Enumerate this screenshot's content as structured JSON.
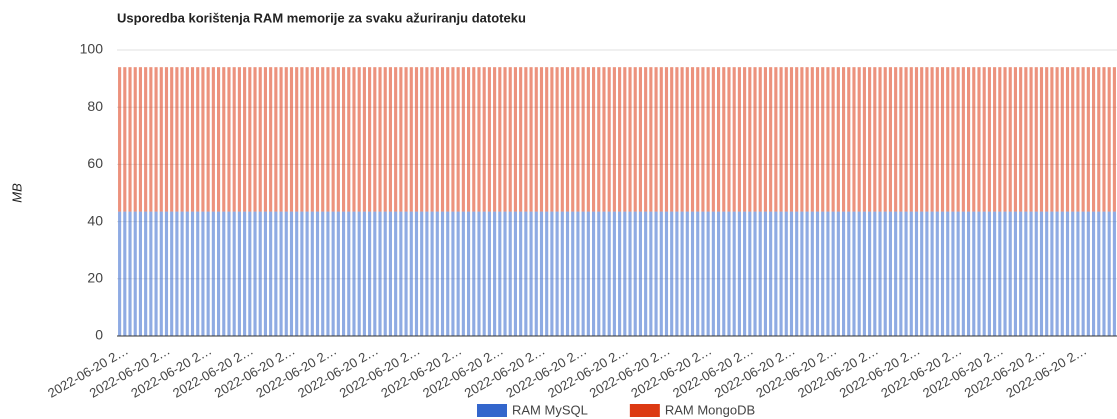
{
  "chart_data": {
    "type": "stacked_bar",
    "title": "Usporedba korištenja RAM memorije za svaku ažuriranju datoteku",
    "y_label": "MB",
    "categories": [
      "2022-06-20 2…",
      null,
      null,
      null,
      null,
      null,
      null,
      null,
      "2022-06-20 2…",
      null,
      null,
      null,
      null,
      null,
      null,
      null,
      "2022-06-20 2…",
      null,
      null,
      null,
      null,
      null,
      null,
      null,
      "2022-06-20 2…",
      null,
      null,
      null,
      null,
      null,
      null,
      null,
      "2022-06-20 2…",
      null,
      null,
      null,
      null,
      null,
      null,
      null,
      "2022-06-20 2…",
      null,
      null,
      null,
      null,
      null,
      null,
      null,
      "2022-06-20 2…",
      null,
      null,
      null,
      null,
      null,
      null,
      null,
      "2022-06-20 2…",
      null,
      null,
      null,
      null,
      null,
      null,
      null,
      "2022-06-20 2…",
      null,
      null,
      null,
      null,
      null,
      null,
      null,
      "2022-06-20 2…",
      null,
      null,
      null,
      null,
      null,
      null,
      null,
      "2022-06-20 2…",
      null,
      null,
      null,
      null,
      null,
      null,
      null,
      "2022-06-20 2…",
      null,
      null,
      null,
      null,
      null,
      null,
      null,
      "2022-06-20 2…",
      null,
      null,
      null,
      null,
      null,
      null,
      null,
      "2022-06-20 2…",
      null,
      null,
      null,
      null,
      null,
      null,
      null,
      "2022-06-20 2…",
      null,
      null,
      null,
      null,
      null,
      null,
      null,
      "2022-06-20 2…",
      null,
      null,
      null,
      null,
      null,
      null,
      null,
      "2022-06-20 2…",
      null,
      null,
      null,
      null,
      null,
      null,
      null,
      "2022-06-20 2…",
      null,
      null,
      null,
      null,
      null,
      null,
      null,
      "2022-06-20 2…",
      null,
      null,
      null,
      null,
      null,
      null,
      null,
      "2022-06-20 2…",
      null,
      null,
      null,
      null,
      null,
      null,
      null,
      "2022-06-20 2…",
      null,
      null,
      null,
      null,
      null,
      null,
      null,
      "2022-06-20 2…",
      null,
      null,
      null,
      null,
      null,
      null,
      null,
      "2022-06-20 2…",
      null,
      null,
      null,
      null,
      null,
      null,
      null,
      "2022-06-20 2…",
      null,
      null,
      null,
      null,
      null,
      null,
      null
    ],
    "series": [
      {
        "name": "RAM MySQL",
        "color": "#3366cc",
        "values": [
          43.5,
          43.5,
          43.5,
          43.5,
          43.5,
          43.5,
          43.5,
          43.5,
          43.5,
          43.5,
          43.5,
          43.5,
          43.5,
          43.5,
          43.5,
          43.5,
          43.5,
          43.5,
          43.5,
          43.5,
          43.5,
          43.5,
          43.5,
          43.5,
          43.5,
          43.5,
          43.5,
          43.5,
          43.5,
          43.5,
          43.5,
          43.5,
          43.5,
          43.5,
          43.5,
          43.5,
          43.5,
          43.5,
          43.5,
          43.5,
          43.5,
          43.5,
          43.5,
          43.5,
          43.5,
          43.5,
          43.5,
          43.5,
          43.5,
          43.5,
          43.5,
          43.5,
          43.5,
          43.5,
          43.5,
          43.5,
          43.5,
          43.5,
          43.5,
          43.5,
          43.5,
          43.5,
          43.5,
          43.5,
          43.5,
          43.5,
          43.5,
          43.5,
          43.5,
          43.5,
          43.5,
          43.5,
          43.5,
          43.5,
          43.5,
          43.5,
          43.5,
          43.5,
          43.5,
          43.5,
          43.5,
          43.5,
          43.5,
          43.5,
          43.5,
          43.5,
          43.5,
          43.5,
          43.5,
          43.5,
          43.5,
          43.5,
          43.5,
          43.5,
          43.5,
          43.5,
          43.5,
          43.5,
          43.5,
          43.5,
          43.5,
          43.5,
          43.5,
          43.5,
          43.5,
          43.5,
          43.5,
          43.5,
          43.5,
          43.5,
          43.5,
          43.5,
          43.5,
          43.5,
          43.5,
          43.5,
          43.5,
          43.5,
          43.5,
          43.5,
          43.5,
          43.5,
          43.5,
          43.5,
          43.5,
          43.5,
          43.5,
          43.5,
          43.5,
          43.5,
          43.5,
          43.5,
          43.5,
          43.5,
          43.5,
          43.5,
          43.5,
          43.5,
          43.5,
          43.5,
          43.5,
          43.5,
          43.5,
          43.5,
          43.5,
          43.5,
          43.5,
          43.5,
          43.5,
          43.5,
          43.5,
          43.5,
          43.5,
          43.5,
          43.5,
          43.5,
          43.5,
          43.5,
          43.5,
          43.5,
          43.5,
          43.5,
          43.5,
          43.5,
          43.5,
          43.5,
          43.5,
          43.5,
          43.5,
          43.5,
          43.5,
          43.5,
          43.5,
          43.5,
          43.5,
          43.5,
          43.5,
          43.5,
          43.5,
          43.5,
          43.5,
          43.5,
          43.5,
          43.5,
          43.5,
          43.5,
          43.5,
          43.5,
          43.5,
          43.5,
          43.5,
          43.5
        ]
      },
      {
        "name": "RAM MongoDB",
        "color": "#dc3912",
        "values": [
          50.5,
          50.5,
          50.5,
          50.5,
          50.5,
          50.5,
          50.5,
          50.5,
          50.5,
          50.5,
          50.5,
          50.5,
          50.5,
          50.5,
          50.5,
          50.5,
          50.5,
          50.5,
          50.5,
          50.5,
          50.5,
          50.5,
          50.5,
          50.5,
          50.5,
          50.5,
          50.5,
          50.5,
          50.5,
          50.5,
          50.5,
          50.5,
          50.5,
          50.5,
          50.5,
          50.5,
          50.5,
          50.5,
          50.5,
          50.5,
          50.5,
          50.5,
          50.5,
          50.5,
          50.5,
          50.5,
          50.5,
          50.5,
          50.5,
          50.5,
          50.5,
          50.5,
          50.5,
          50.5,
          50.5,
          50.5,
          50.5,
          50.5,
          50.5,
          50.5,
          50.5,
          50.5,
          50.5,
          50.5,
          50.5,
          50.5,
          50.5,
          50.5,
          50.5,
          50.5,
          50.5,
          50.5,
          50.5,
          50.5,
          50.5,
          50.5,
          50.5,
          50.5,
          50.5,
          50.5,
          50.5,
          50.5,
          50.5,
          50.5,
          50.5,
          50.5,
          50.5,
          50.5,
          50.5,
          50.5,
          50.5,
          50.5,
          50.5,
          50.5,
          50.5,
          50.5,
          50.5,
          50.5,
          50.5,
          50.5,
          50.5,
          50.5,
          50.5,
          50.5,
          50.5,
          50.5,
          50.5,
          50.5,
          50.5,
          50.5,
          50.5,
          50.5,
          50.5,
          50.5,
          50.5,
          50.5,
          50.5,
          50.5,
          50.5,
          50.5,
          50.5,
          50.5,
          50.5,
          50.5,
          50.5,
          50.5,
          50.5,
          50.5,
          50.5,
          50.5,
          50.5,
          50.5,
          50.5,
          50.5,
          50.5,
          50.5,
          50.5,
          50.5,
          50.5,
          50.5,
          50.5,
          50.5,
          50.5,
          50.5,
          50.5,
          50.5,
          50.5,
          50.5,
          50.5,
          50.5,
          50.5,
          50.5,
          50.5,
          50.5,
          50.5,
          50.5,
          50.5,
          50.5,
          50.5,
          50.5,
          50.5,
          50.5,
          50.5,
          50.5,
          50.5,
          50.5,
          50.5,
          50.5,
          50.5,
          50.5,
          50.5,
          50.5,
          50.5,
          50.5,
          50.5,
          50.5,
          50.5,
          50.5,
          50.5,
          50.5,
          50.5,
          50.5,
          50.5,
          50.5,
          50.5,
          50.5,
          50.5,
          50.5,
          50.5,
          50.5,
          50.5,
          50.5
        ]
      }
    ],
    "ylim": [
      0,
      100
    ],
    "yticks": [
      0,
      20,
      40,
      60,
      80,
      100
    ],
    "grid": true,
    "legend": "bottom"
  }
}
